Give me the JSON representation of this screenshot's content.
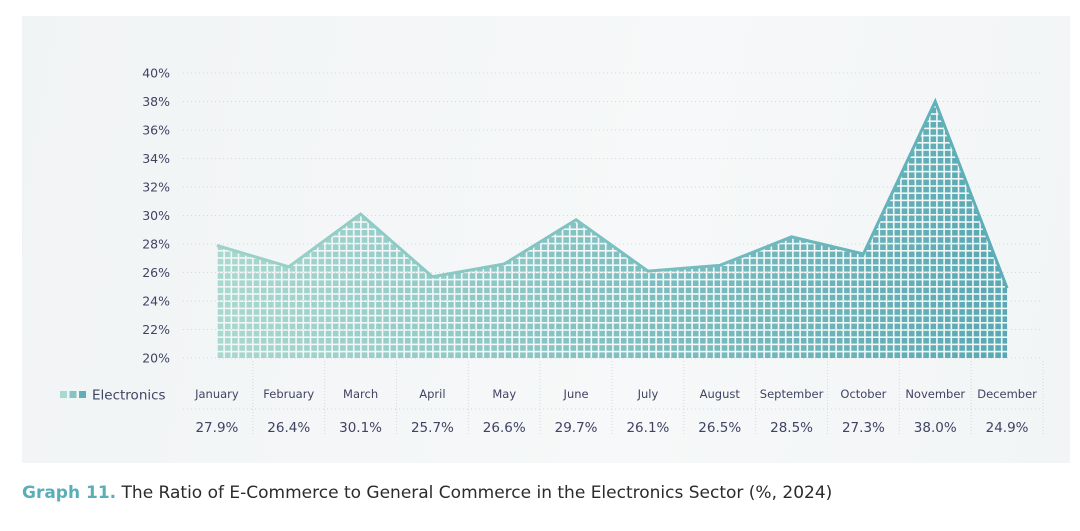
{
  "chart_data": {
    "type": "area",
    "title": "",
    "xlabel": "",
    "ylabel": "",
    "ylim": [
      20,
      40
    ],
    "yticks": [
      20,
      22,
      24,
      26,
      28,
      30,
      32,
      34,
      36,
      38,
      40
    ],
    "ytick_labels": [
      "20%",
      "22%",
      "24%",
      "26%",
      "28%",
      "30%",
      "32%",
      "34%",
      "36%",
      "38%",
      "40%"
    ],
    "grid": true,
    "categories": [
      "January",
      "February",
      "March",
      "April",
      "May",
      "June",
      "July",
      "August",
      "September",
      "October",
      "November",
      "December"
    ],
    "series": [
      {
        "name": "Electronics",
        "values": [
          27.9,
          26.4,
          30.1,
          25.7,
          26.6,
          29.7,
          26.1,
          26.5,
          28.5,
          27.3,
          38.0,
          24.9
        ],
        "value_labels": [
          "27.9%",
          "26.4%",
          "30.1%",
          "25.7%",
          "26.6%",
          "29.7%",
          "26.1%",
          "26.5%",
          "28.5%",
          "27.3%",
          "38.0%",
          "24.9%"
        ]
      }
    ],
    "legend": "bottom-left",
    "colors": {
      "start": "#a9d8cf",
      "end": "#58a9b3",
      "line": "#5aaeb8"
    }
  },
  "caption": {
    "lead": "Graph 11.",
    "text": " The Ratio of E-Commerce to General Commerce in the Electronics Sector (%, 2024)"
  }
}
